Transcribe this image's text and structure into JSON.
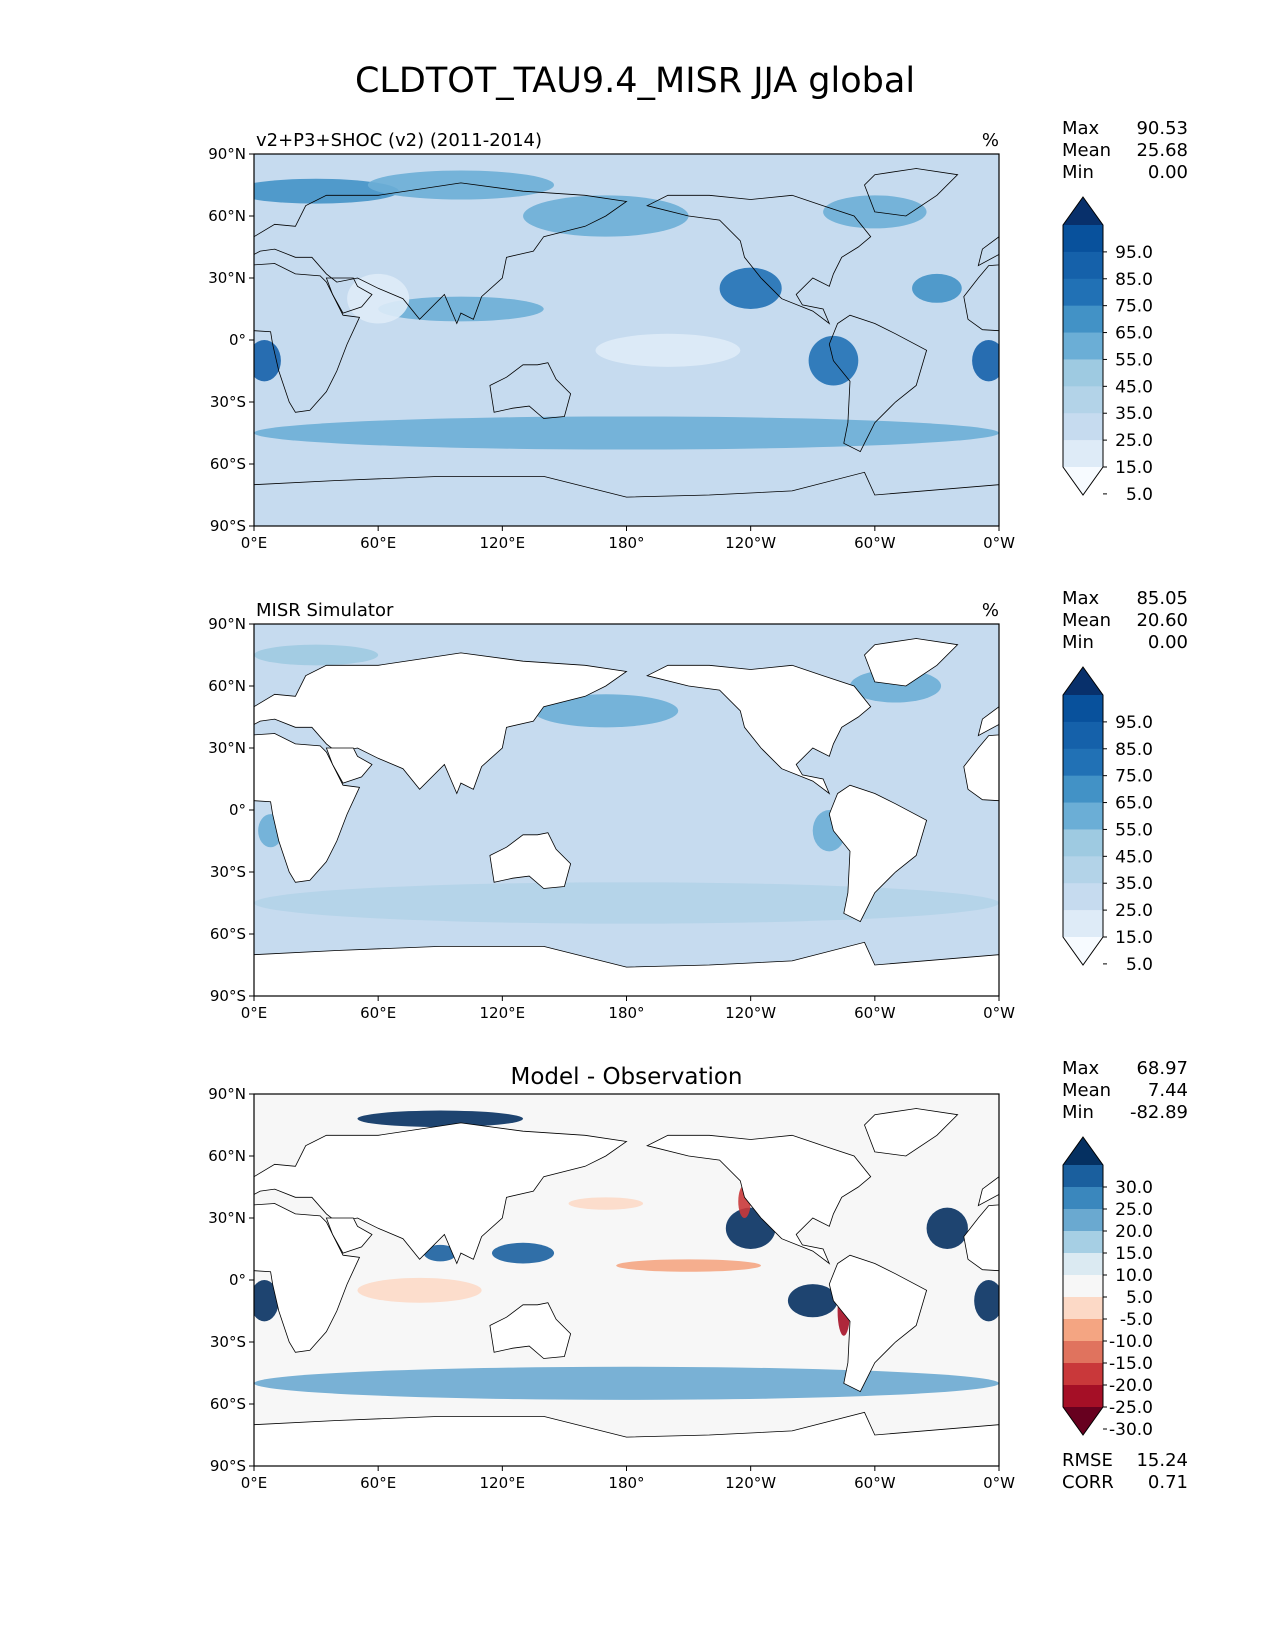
{
  "figure": {
    "title": "CLDTOT_TAU9.4_MISR JJA global"
  },
  "axes": {
    "lat_ticks": [
      "90°N",
      "60°N",
      "30°N",
      "0°",
      "30°S",
      "60°S",
      "90°S"
    ],
    "lon_ticks": [
      "0°E",
      "60°E",
      "120°E",
      "180°",
      "120°W",
      "60°W",
      "0°W"
    ]
  },
  "panels": [
    {
      "id": "model",
      "left_title": "v2+P3+SHOC (v2) (2011-2014)",
      "center_title": "",
      "right_title": "%",
      "stats": [
        {
          "label": "Max",
          "value": "90.53"
        },
        {
          "label": "Mean",
          "value": "25.68"
        },
        {
          "label": "Min",
          "value": "0.00"
        }
      ],
      "colorbar": {
        "labels": [
          "95.0",
          "85.0",
          "75.0",
          "65.0",
          "55.0",
          "45.0",
          "35.0",
          "25.0",
          "15.0",
          "5.0"
        ],
        "colors": [
          "#f7fbff",
          "#deebf7",
          "#c6dbef",
          "#b3d3e8",
          "#9ecae1",
          "#6baed6",
          "#4292c6",
          "#2171b5",
          "#1561aa",
          "#08519c",
          "#08306b"
        ]
      }
    },
    {
      "id": "obs",
      "left_title": "MISR Simulator",
      "center_title": "",
      "right_title": "%",
      "stats": [
        {
          "label": "Max",
          "value": "85.05"
        },
        {
          "label": "Mean",
          "value": "20.60"
        },
        {
          "label": "Min",
          "value": "0.00"
        }
      ],
      "colorbar": {
        "labels": [
          "95.0",
          "85.0",
          "75.0",
          "65.0",
          "55.0",
          "45.0",
          "35.0",
          "25.0",
          "15.0",
          "5.0"
        ],
        "colors": [
          "#f7fbff",
          "#deebf7",
          "#c6dbef",
          "#b3d3e8",
          "#9ecae1",
          "#6baed6",
          "#4292c6",
          "#2171b5",
          "#1561aa",
          "#08519c",
          "#08306b"
        ]
      }
    },
    {
      "id": "diff",
      "left_title": "",
      "center_title": "Model - Observation",
      "right_title": "",
      "stats": [
        {
          "label": "Max",
          "value": "68.97"
        },
        {
          "label": "Mean",
          "value": "7.44"
        },
        {
          "label": "Min",
          "value": "-82.89"
        }
      ],
      "extra_stats": [
        {
          "label": "RMSE",
          "value": "15.24"
        },
        {
          "label": "CORR",
          "value": "0.71"
        }
      ],
      "colorbar": {
        "labels": [
          "30.0",
          "25.0",
          "20.0",
          "15.0",
          "10.0",
          "5.0",
          "-5.0",
          "-10.0",
          "-15.0",
          "-20.0",
          "-25.0",
          "-30.0"
        ],
        "colors": [
          "#67001f",
          "#a50f26",
          "#c9383a",
          "#e0735e",
          "#f4a582",
          "#fcd9c6",
          "#f7f7f7",
          "#dbeaf2",
          "#a6cfe4",
          "#6aa9d0",
          "#3a87bd",
          "#1a5f9e",
          "#053061"
        ]
      }
    }
  ],
  "chart_data": [
    {
      "type": "heatmap",
      "title": "v2+P3+SHOC (v2) (2011-2014)",
      "units": "%",
      "xlim": [
        0,
        360
      ],
      "ylim": [
        -90,
        90
      ],
      "levels": [
        5,
        15,
        25,
        35,
        45,
        55,
        65,
        75,
        85,
        95
      ],
      "colors": [
        "#f7fbff",
        "#deebf7",
        "#c6dbef",
        "#b3d3e8",
        "#9ecae1",
        "#6baed6",
        "#4292c6",
        "#2171b5",
        "#1561aa",
        "#08519c",
        "#08306b"
      ],
      "features": [
        {
          "lon": 30,
          "lat": 72,
          "rx": 40,
          "ry": 6,
          "value": 55
        },
        {
          "lon": 100,
          "lat": 75,
          "rx": 45,
          "ry": 7,
          "value": 48
        },
        {
          "lon": 170,
          "lat": 60,
          "rx": 40,
          "ry": 10,
          "value": 50
        },
        {
          "lon": 300,
          "lat": 62,
          "rx": 25,
          "ry": 8,
          "value": 50
        },
        {
          "lon": 240,
          "lat": 25,
          "rx": 15,
          "ry": 10,
          "value": 70
        },
        {
          "lon": 330,
          "lat": 25,
          "rx": 12,
          "ry": 7,
          "value": 62
        },
        {
          "lon": 100,
          "lat": 15,
          "rx": 40,
          "ry": 6,
          "value": 52
        },
        {
          "lon": 280,
          "lat": -10,
          "rx": 12,
          "ry": 12,
          "value": 70
        },
        {
          "lon": 5,
          "lat": -10,
          "rx": 8,
          "ry": 10,
          "value": 80
        },
        {
          "lon": 355,
          "lat": -10,
          "rx": 8,
          "ry": 10,
          "value": 75
        },
        {
          "lon": 180,
          "lat": -45,
          "rx": 180,
          "ry": 8,
          "value": 48
        },
        {
          "lon": 200,
          "lat": -5,
          "rx": 35,
          "ry": 8,
          "value": 8
        },
        {
          "lon": 60,
          "lat": 20,
          "rx": 15,
          "ry": 12,
          "value": 5
        }
      ]
    },
    {
      "type": "heatmap",
      "title": "MISR Simulator",
      "units": "%",
      "xlim": [
        0,
        360
      ],
      "ylim": [
        -90,
        90
      ],
      "levels": [
        5,
        15,
        25,
        35,
        45,
        55,
        65,
        75,
        85,
        95
      ],
      "colors": [
        "#f7fbff",
        "#deebf7",
        "#c6dbef",
        "#b3d3e8",
        "#9ecae1",
        "#6baed6",
        "#4292c6",
        "#2171b5",
        "#1561aa",
        "#08519c",
        "#08306b"
      ],
      "features": [
        {
          "lon": 170,
          "lat": 48,
          "rx": 35,
          "ry": 8,
          "value": 50
        },
        {
          "lon": 30,
          "lat": 75,
          "rx": 30,
          "ry": 5,
          "value": 42
        },
        {
          "lon": 310,
          "lat": 60,
          "rx": 22,
          "ry": 8,
          "value": 45
        },
        {
          "lon": 278,
          "lat": -10,
          "rx": 8,
          "ry": 10,
          "value": 48
        },
        {
          "lon": 8,
          "lat": -10,
          "rx": 6,
          "ry": 8,
          "value": 48
        },
        {
          "lon": 180,
          "lat": -45,
          "rx": 180,
          "ry": 10,
          "value": 32
        }
      ]
    },
    {
      "type": "heatmap",
      "title": "Model - Observation",
      "units": "%",
      "xlim": [
        0,
        360
      ],
      "ylim": [
        -90,
        90
      ],
      "levels": [
        -30,
        -25,
        -20,
        -15,
        -10,
        -5,
        5,
        10,
        15,
        20,
        25,
        30
      ],
      "colors": [
        "#67001f",
        "#a50f26",
        "#c9383a",
        "#e0735e",
        "#f4a582",
        "#fcd9c6",
        "#f7f7f7",
        "#dbeaf2",
        "#a6cfe4",
        "#6aa9d0",
        "#3a87bd",
        "#1a5f9e",
        "#053061"
      ],
      "features": [
        {
          "lon": 240,
          "lat": 25,
          "rx": 12,
          "ry": 10,
          "value": 35
        },
        {
          "lon": 335,
          "lat": 25,
          "rx": 10,
          "ry": 10,
          "value": 35
        },
        {
          "lon": 270,
          "lat": -10,
          "rx": 12,
          "ry": 8,
          "value": 35
        },
        {
          "lon": 5,
          "lat": -10,
          "rx": 7,
          "ry": 10,
          "value": 35
        },
        {
          "lon": 355,
          "lat": -10,
          "rx": 7,
          "ry": 10,
          "value": 35
        },
        {
          "lon": 130,
          "lat": 13,
          "rx": 15,
          "ry": 5,
          "value": 28
        },
        {
          "lon": 90,
          "lat": 13,
          "rx": 8,
          "ry": 4,
          "value": 25
        },
        {
          "lon": 90,
          "lat": 78,
          "rx": 40,
          "ry": 4,
          "value": 30
        },
        {
          "lon": 180,
          "lat": -50,
          "rx": 180,
          "ry": 8,
          "value": 18
        },
        {
          "lon": 210,
          "lat": 7,
          "rx": 35,
          "ry": 3,
          "value": -15
        },
        {
          "lon": 80,
          "lat": -5,
          "rx": 30,
          "ry": 6,
          "value": -10
        },
        {
          "lon": 170,
          "lat": 37,
          "rx": 18,
          "ry": 3,
          "value": -8
        },
        {
          "lon": 285,
          "lat": -15,
          "rx": 3,
          "ry": 12,
          "value": -30
        },
        {
          "lon": 237,
          "lat": 38,
          "rx": 3,
          "ry": 8,
          "value": -25
        }
      ]
    }
  ]
}
